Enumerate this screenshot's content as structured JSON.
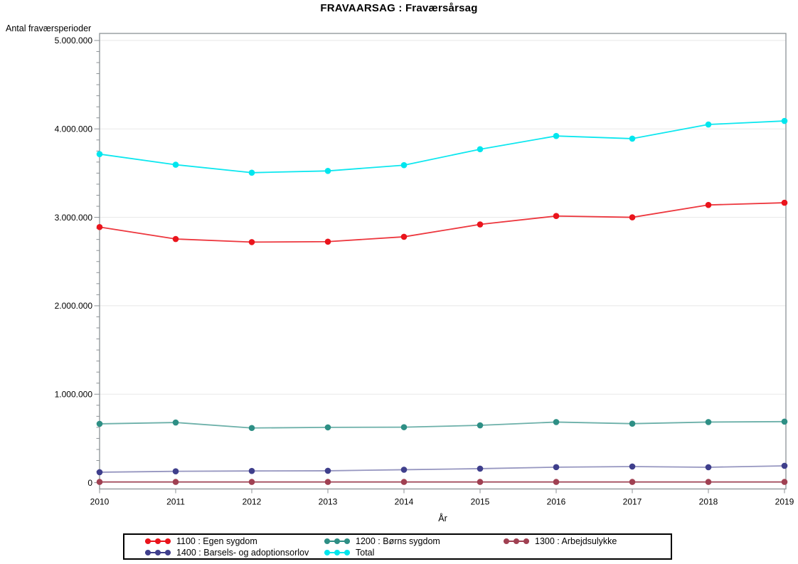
{
  "chart": {
    "title": "FRAVAARSAG : Fraværsårsag",
    "y_axis_title": "Antal fraværsperioder",
    "x_axis_title": "År"
  },
  "chart_data": {
    "type": "line",
    "title": "FRAVAARSAG : Fraværsårsag",
    "xlabel": "År",
    "ylabel": "Antal fraværsperioder",
    "x": [
      2010,
      2011,
      2012,
      2013,
      2014,
      2015,
      2016,
      2017,
      2018,
      2019
    ],
    "xtick_labels": [
      "2010",
      "2011",
      "2012",
      "2013",
      "2014",
      "2015",
      "2016",
      "2017",
      "2018",
      "2019"
    ],
    "ylim": [
      0,
      5000000
    ],
    "y_major_step": 1000000,
    "y_minor_step": 125000,
    "ytick_labels": [
      "0",
      "1.000.000",
      "2.000.000",
      "3.000.000",
      "4.000.000",
      "5.000.000"
    ],
    "grid": "horizontal-major-on",
    "legend_position": "bottom",
    "series": [
      {
        "id": "1100",
        "name": "1100 : Egen sygdom",
        "color": "#ea141c",
        "line_alpha": 0.85,
        "values": [
          2890000,
          2755000,
          2720000,
          2725000,
          2780000,
          2920000,
          3015000,
          3000000,
          3140000,
          3165000
        ]
      },
      {
        "id": "1200",
        "name": "1200 : Børns sygdom",
        "color": "#2e8f85",
        "line_alpha": 0.7,
        "values": [
          665000,
          680000,
          618000,
          625000,
          627000,
          648000,
          685000,
          667000,
          685000,
          690000
        ]
      },
      {
        "id": "1300",
        "name": "1300 : Arbejdsulykke",
        "color": "#a04052",
        "line_alpha": 0.95,
        "values": [
          8000,
          8000,
          8000,
          8000,
          8000,
          8000,
          8000,
          8000,
          8000,
          8000
        ]
      },
      {
        "id": "1400",
        "name": "1400 : Barsels- og adoptionsorlov",
        "color": "#3f3f8c",
        "line_alpha": 0.55,
        "values": [
          118000,
          128000,
          132000,
          134000,
          146000,
          158000,
          175000,
          182000,
          174000,
          190000
        ]
      },
      {
        "id": "total",
        "name": "Total",
        "color": "#00e6ee",
        "line_alpha": 0.95,
        "values": [
          3715000,
          3595000,
          3505000,
          3525000,
          3590000,
          3770000,
          3920000,
          3890000,
          4050000,
          4090000
        ]
      }
    ],
    "colors": {
      "frame": "#8c9296",
      "gridline": "#e8e8e8",
      "tick": "#8c9296"
    }
  }
}
